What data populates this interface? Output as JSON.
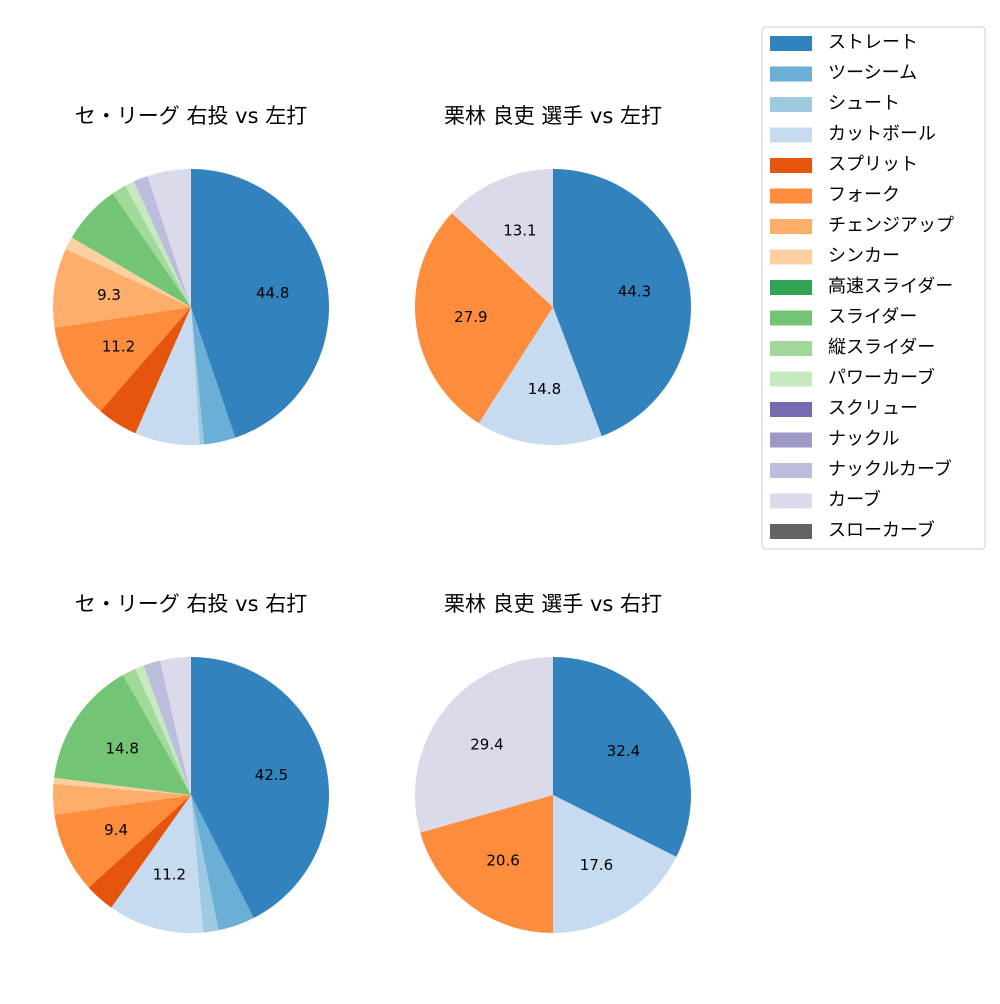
{
  "legend": {
    "labels": [
      "ストレート",
      "ツーシーム",
      "シュート",
      "カットボール",
      "スプリット",
      "フォーク",
      "チェンジアップ",
      "シンカー",
      "高速スライダー",
      "スライダー",
      "縦スライダー",
      "パワーカーブ",
      "スクリュー",
      "ナックル",
      "ナックルカーブ",
      "カーブ",
      "スローカーブ"
    ],
    "colors": [
      "#3182bd",
      "#6baed6",
      "#9ecae1",
      "#c6dbef",
      "#e6550d",
      "#fd8d3c",
      "#fdae6b",
      "#fdd0a2",
      "#31a354",
      "#74c476",
      "#a1d99b",
      "#c7e9c0",
      "#756bb1",
      "#9e9ac8",
      "#bcbddc",
      "#dadaeb",
      "#636363"
    ]
  },
  "chart_data": [
    {
      "type": "pie",
      "title": "セ・リーグ 右投 vs 左打",
      "categories": [
        "ストレート",
        "ツーシーム",
        "シュート",
        "カットボール",
        "スプリット",
        "フォーク",
        "チェンジアップ",
        "シンカー",
        "スライダー",
        "縦スライダー",
        "パワーカーブ",
        "ナックルカーブ",
        "カーブ"
      ],
      "values": [
        44.8,
        3.7,
        0.5,
        7.6,
        4.8,
        11.2,
        9.3,
        1.5,
        7.0,
        1.7,
        1.1,
        1.7,
        5.1
      ],
      "value_labels": [
        "44.8",
        null,
        null,
        null,
        null,
        "11.2",
        "9.3",
        null,
        null,
        null,
        null,
        null,
        null
      ]
    },
    {
      "type": "pie",
      "title": "栗林 良吏 選手 vs 左打",
      "categories": [
        "ストレート",
        "カットボール",
        "フォーク",
        "カーブ"
      ],
      "values": [
        44.3,
        14.8,
        27.9,
        13.1
      ],
      "value_labels": [
        "44.3",
        "14.8",
        "27.9",
        "13.1"
      ]
    },
    {
      "type": "pie",
      "title": "セ・リーグ 右投 vs 右打",
      "categories": [
        "ストレート",
        "ツーシーム",
        "シュート",
        "カットボール",
        "スプリット",
        "フォーク",
        "チェンジアップ",
        "シンカー",
        "スライダー",
        "縦スライダー",
        "パワーカーブ",
        "ナックルカーブ",
        "カーブ"
      ],
      "values": [
        42.5,
        4.3,
        1.8,
        11.2,
        3.5,
        9.4,
        3.6,
        0.7,
        14.8,
        1.6,
        1.0,
        2.0,
        3.6
      ],
      "value_labels": [
        "42.5",
        null,
        null,
        "11.2",
        null,
        "9.4",
        null,
        null,
        "14.8",
        null,
        null,
        null,
        null
      ]
    },
    {
      "type": "pie",
      "title": "栗林 良吏 選手 vs 右打",
      "categories": [
        "ストレート",
        "カットボール",
        "フォーク",
        "カーブ"
      ],
      "values": [
        32.4,
        17.6,
        20.6,
        29.4
      ],
      "value_labels": [
        "32.4",
        "17.6",
        "20.6",
        "29.4"
      ]
    }
  ]
}
